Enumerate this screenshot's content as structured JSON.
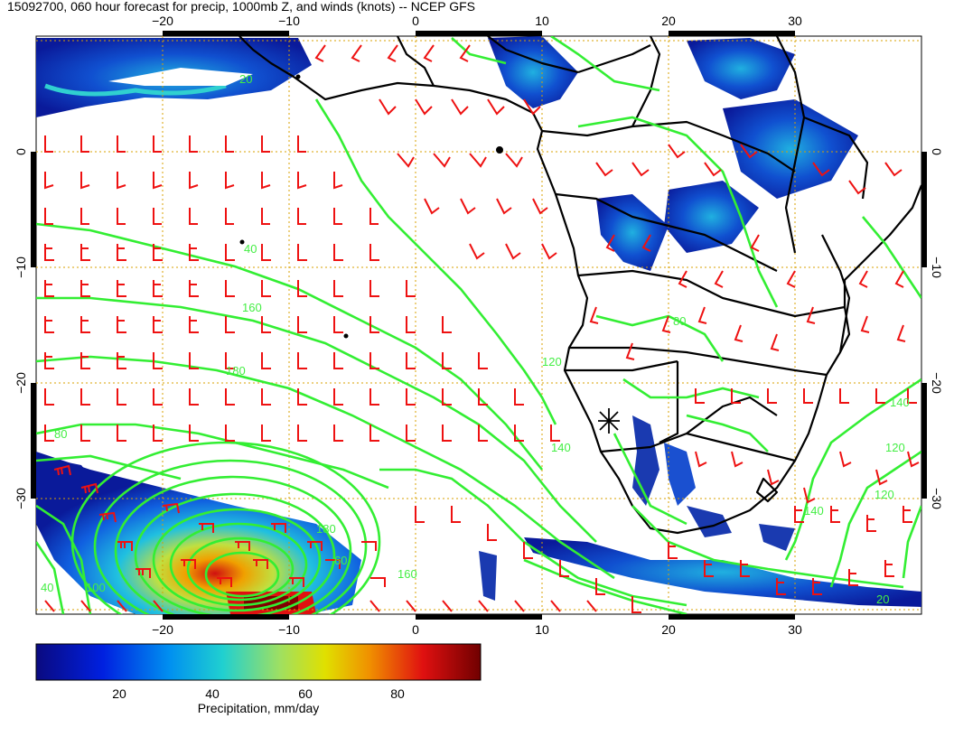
{
  "title": "15092700, 060 hour forecast for precip, 1000mb Z, and winds (knots) -- NCEP GFS",
  "map": {
    "lon_range": [
      -30,
      40
    ],
    "lat_range": [
      -40,
      10
    ],
    "lon_ticks": [
      {
        "value": -20,
        "label": "−20"
      },
      {
        "value": -10,
        "label": "−10"
      },
      {
        "value": 0,
        "label": "0"
      },
      {
        "value": 10,
        "label": "10"
      },
      {
        "value": 20,
        "label": "20"
      },
      {
        "value": 30,
        "label": "30"
      }
    ],
    "lat_ticks": [
      {
        "value": 0,
        "label": "0"
      },
      {
        "value": -10,
        "label": "−10"
      },
      {
        "value": -20,
        "label": "−20"
      },
      {
        "value": -30,
        "label": "−30"
      }
    ],
    "gridlines": true,
    "contour_labels": [
      "160",
      "180",
      "180",
      "160",
      "140",
      "140",
      "120",
      "120",
      "140",
      "120",
      "100",
      "80",
      "80",
      "60",
      "40",
      "40",
      "20",
      "20"
    ],
    "colors": {
      "coast": "#000000",
      "contour": "#33ee33",
      "barb": "#ee1111",
      "grid": "#d8a000"
    }
  },
  "colorbar": {
    "range": [
      0,
      100
    ],
    "ticks": [
      {
        "value": 20,
        "label": "20"
      },
      {
        "value": 40,
        "label": "40"
      },
      {
        "value": 60,
        "label": "60"
      },
      {
        "value": 80,
        "label": "80"
      }
    ],
    "label": "Precipitation, mm/day"
  }
}
